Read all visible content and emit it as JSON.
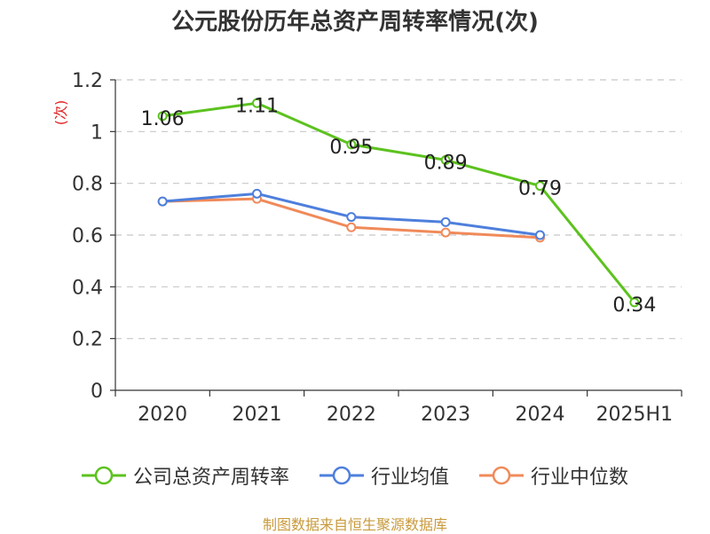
{
  "title": "公元股份历年总资产周转率情况(次)",
  "source": "制图数据来自恒生聚源数据库",
  "chart_data": {
    "type": "line",
    "title": "公元股份历年总资产周转率情况(次)",
    "ylabel": "(次)",
    "ylim": [
      0,
      1.2
    ],
    "yticks": [
      0,
      0.2,
      0.4,
      0.6,
      0.8,
      1,
      1.2
    ],
    "ytick_labels": [
      "0",
      "0.2",
      "0.4",
      "0.6",
      "0.8",
      "1",
      "1.2"
    ],
    "categories": [
      "2020",
      "2021",
      "2022",
      "2023",
      "2024",
      "2025H1"
    ],
    "grid": true,
    "legend_position": "bottom",
    "series": [
      {
        "name": "公司总资产周转率",
        "color": "#5cc21e",
        "values": [
          1.06,
          1.11,
          0.95,
          0.89,
          0.79,
          0.34
        ],
        "labels": [
          "1.06",
          "1.11",
          "0.95",
          "0.89",
          "0.79",
          "0.34"
        ]
      },
      {
        "name": "行业均值",
        "color": "#4e7fdc",
        "values": [
          0.73,
          0.76,
          0.67,
          0.65,
          0.6,
          null
        ]
      },
      {
        "name": "行业中位数",
        "color": "#f08a5a",
        "values": [
          0.73,
          0.74,
          0.63,
          0.61,
          0.59,
          null
        ]
      }
    ]
  }
}
